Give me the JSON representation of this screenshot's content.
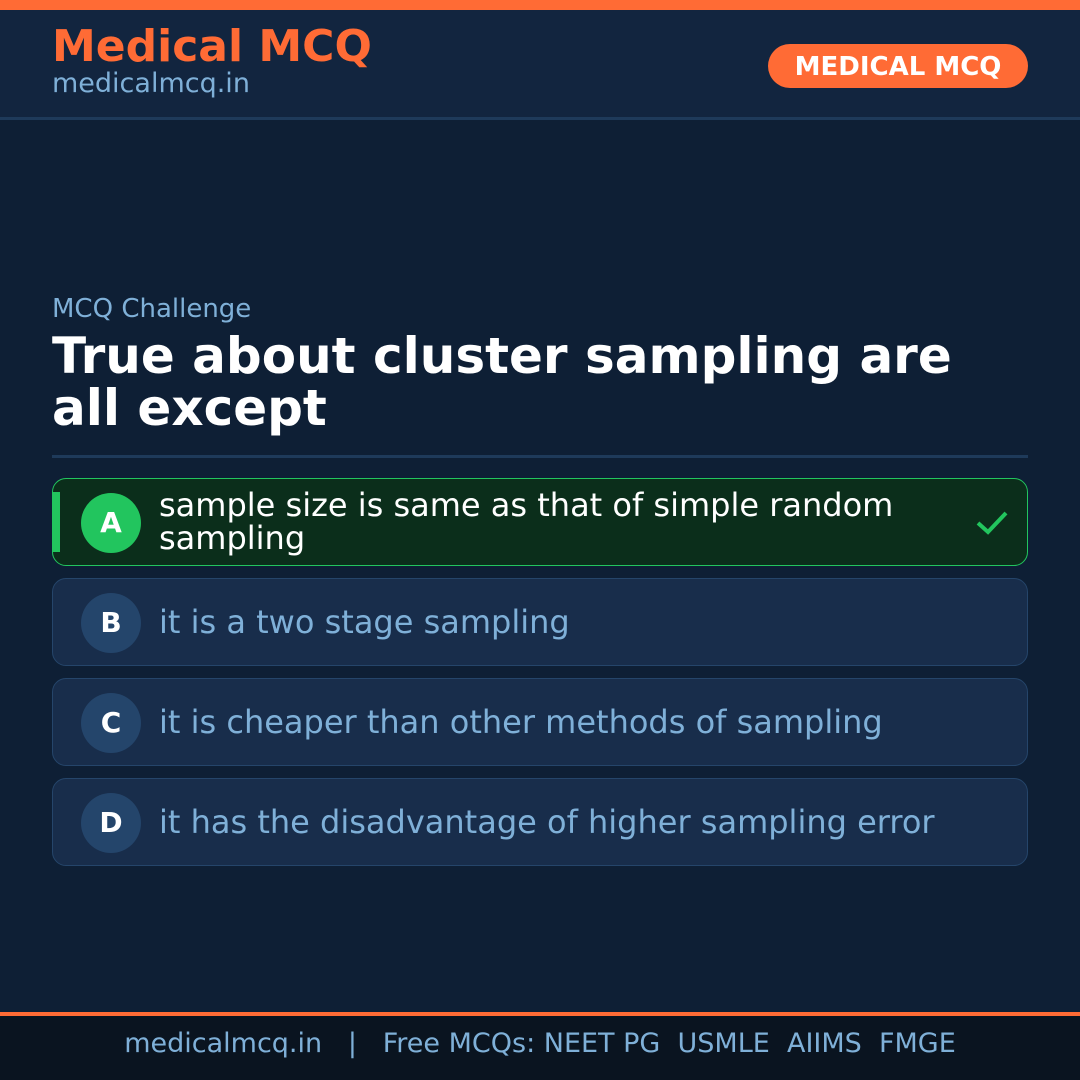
{
  "header": {
    "brand": "Medical MCQ",
    "url": "medicalmcq.in",
    "badge": "MEDICAL MCQ"
  },
  "main": {
    "kicker": "MCQ Challenge",
    "question": "True about cluster sampling are all except",
    "options": [
      {
        "letter": "A",
        "text": "sample size is same as that of simple random sampling",
        "correct": true
      },
      {
        "letter": "B",
        "text": "it is a two stage sampling",
        "correct": false
      },
      {
        "letter": "C",
        "text": "it is cheaper than other methods of sampling",
        "correct": false
      },
      {
        "letter": "D",
        "text": "it has the disadvantage of higher sampling error",
        "correct": false
      }
    ]
  },
  "footer": {
    "text": "medicalmcq.in   |   Free MCQs: NEET PG  USMLE  AIIMS  FMGE"
  },
  "colors": {
    "accent": "#ff6b35",
    "correct": "#22c55e",
    "background": "#0e1f35"
  }
}
